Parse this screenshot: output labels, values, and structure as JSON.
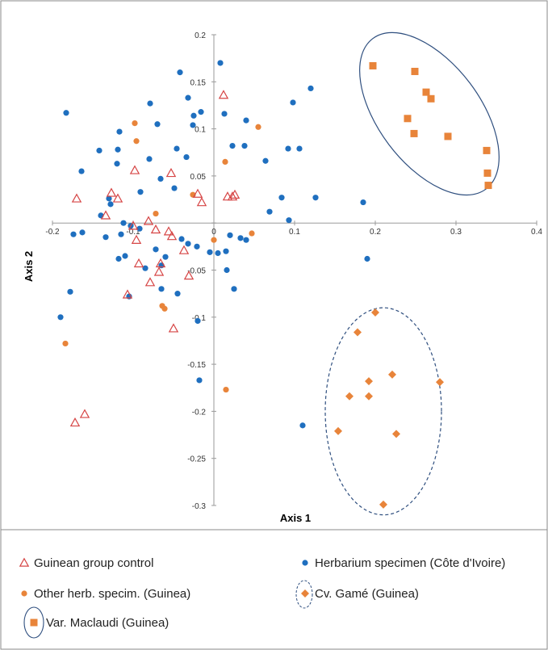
{
  "chart_data": {
    "type": "scatter",
    "xlabel": "Axis 1",
    "ylabel": "Axis 2",
    "xlim": [
      -0.2,
      0.4
    ],
    "ylim": [
      -0.3,
      0.2
    ],
    "x_ticks": [
      -0.2,
      -0.1,
      0,
      0.1,
      0.2,
      0.3,
      0.4
    ],
    "y_ticks": [
      0.2,
      0.15,
      0.1,
      0.05,
      0,
      -0.05,
      -0.1,
      -0.15,
      -0.2,
      -0.25,
      -0.3
    ],
    "x_tick_labels": [
      "-0.2",
      "-0.1",
      "0",
      "0.1",
      "0.2",
      "0.3",
      "0.4"
    ],
    "y_tick_labels": [
      "0.2",
      "0.15",
      "0.1",
      "0.05",
      "0",
      "-0.05",
      "-0.1",
      "-0.15",
      "-0.2",
      "-0.25",
      "-0.3"
    ],
    "grid": false,
    "legend_position": "bottom",
    "series": [
      {
        "name": "Guinean group control",
        "marker": "triangle-open",
        "color": "#d64545",
        "points": [
          [
            0.012,
            0.136
          ],
          [
            -0.098,
            0.056
          ],
          [
            -0.053,
            0.053
          ],
          [
            -0.17,
            0.026
          ],
          [
            -0.127,
            0.032
          ],
          [
            -0.134,
            0.008
          ],
          [
            -0.119,
            0.026
          ],
          [
            -0.02,
            0.031
          ],
          [
            -0.015,
            0.022
          ],
          [
            0.017,
            0.028
          ],
          [
            0.023,
            0.028
          ],
          [
            0.026,
            0.03
          ],
          [
            -0.1,
            -0.003
          ],
          [
            -0.081,
            0.002
          ],
          [
            -0.056,
            -0.009
          ],
          [
            -0.052,
            -0.014
          ],
          [
            -0.096,
            -0.018
          ],
          [
            -0.072,
            -0.007
          ],
          [
            -0.093,
            -0.043
          ],
          [
            -0.066,
            -0.043
          ],
          [
            -0.068,
            -0.052
          ],
          [
            -0.037,
            -0.029
          ],
          [
            -0.031,
            -0.056
          ],
          [
            -0.079,
            -0.063
          ],
          [
            -0.107,
            -0.076
          ],
          [
            -0.05,
            -0.112
          ],
          [
            -0.172,
            -0.212
          ],
          [
            -0.16,
            -0.203
          ]
        ]
      },
      {
        "name": "Other herb. specim. (Guinea)",
        "marker": "circle",
        "color": "#e8843a",
        "points": [
          [
            -0.098,
            0.106
          ],
          [
            -0.096,
            0.087
          ],
          [
            0.055,
            0.102
          ],
          [
            0.014,
            0.065
          ],
          [
            -0.026,
            0.03
          ],
          [
            -0.072,
            0.01
          ],
          [
            0.047,
            -0.011
          ],
          [
            0.0,
            -0.018
          ],
          [
            -0.064,
            -0.088
          ],
          [
            -0.061,
            -0.091
          ],
          [
            -0.184,
            -0.128
          ],
          [
            0.015,
            -0.177
          ]
        ]
      },
      {
        "name": "Herbarium specimen (Côte d'Ivoire)",
        "marker": "circle",
        "color": "#1f6fbf",
        "points": [
          [
            -0.183,
            0.117
          ],
          [
            0.008,
            0.17
          ],
          [
            -0.042,
            0.16
          ],
          [
            0.12,
            0.143
          ],
          [
            -0.032,
            0.133
          ],
          [
            -0.025,
            0.114
          ],
          [
            -0.016,
            0.118
          ],
          [
            -0.079,
            0.127
          ],
          [
            -0.117,
            0.097
          ],
          [
            -0.119,
            0.078
          ],
          [
            -0.142,
            0.077
          ],
          [
            -0.12,
            0.063
          ],
          [
            -0.07,
            0.105
          ],
          [
            -0.026,
            0.104
          ],
          [
            0.013,
            0.116
          ],
          [
            0.04,
            0.109
          ],
          [
            0.098,
            0.128
          ],
          [
            0.023,
            0.082
          ],
          [
            0.038,
            0.082
          ],
          [
            -0.046,
            0.079
          ],
          [
            -0.034,
            0.07
          ],
          [
            -0.08,
            0.068
          ],
          [
            -0.164,
            0.055
          ],
          [
            -0.066,
            0.047
          ],
          [
            -0.091,
            0.033
          ],
          [
            -0.13,
            0.026
          ],
          [
            -0.14,
            0.008
          ],
          [
            -0.128,
            0.02
          ],
          [
            -0.112,
            0.0
          ],
          [
            -0.103,
            -0.003
          ],
          [
            -0.049,
            0.037
          ],
          [
            0.092,
            0.079
          ],
          [
            0.106,
            0.079
          ],
          [
            0.064,
            0.066
          ],
          [
            0.084,
            0.027
          ],
          [
            0.126,
            0.027
          ],
          [
            0.185,
            0.022
          ],
          [
            0.069,
            0.012
          ],
          [
            0.093,
            0.003
          ],
          [
            -0.174,
            -0.012
          ],
          [
            -0.134,
            -0.015
          ],
          [
            -0.163,
            -0.01
          ],
          [
            -0.115,
            -0.012
          ],
          [
            -0.092,
            -0.006
          ],
          [
            -0.04,
            -0.017
          ],
          [
            -0.032,
            -0.022
          ],
          [
            -0.021,
            -0.025
          ],
          [
            0.02,
            -0.013
          ],
          [
            0.033,
            -0.016
          ],
          [
            0.04,
            -0.018
          ],
          [
            -0.118,
            -0.038
          ],
          [
            -0.11,
            -0.035
          ],
          [
            -0.072,
            -0.028
          ],
          [
            -0.06,
            -0.036
          ],
          [
            -0.005,
            -0.031
          ],
          [
            0.005,
            -0.032
          ],
          [
            0.015,
            -0.03
          ],
          [
            -0.065,
            -0.045
          ],
          [
            -0.085,
            -0.048
          ],
          [
            0.016,
            -0.05
          ],
          [
            -0.045,
            -0.075
          ],
          [
            0.025,
            -0.07
          ],
          [
            -0.065,
            -0.07
          ],
          [
            -0.178,
            -0.073
          ],
          [
            -0.19,
            -0.1
          ],
          [
            -0.105,
            -0.078
          ],
          [
            0.19,
            -0.038
          ],
          [
            -0.02,
            -0.104
          ],
          [
            -0.018,
            -0.167
          ],
          [
            0.11,
            -0.215
          ]
        ]
      },
      {
        "name": "Cv. Gamé (Guinea)",
        "marker": "diamond",
        "color": "#e8843a",
        "points": [
          [
            0.2,
            -0.095
          ],
          [
            0.178,
            -0.116
          ],
          [
            0.192,
            -0.168
          ],
          [
            0.221,
            -0.161
          ],
          [
            0.28,
            -0.169
          ],
          [
            0.168,
            -0.184
          ],
          [
            0.192,
            -0.184
          ],
          [
            0.226,
            -0.224
          ],
          [
            0.154,
            -0.221
          ],
          [
            0.21,
            -0.299
          ]
        ]
      },
      {
        "name": "Var. Maclaudi (Guinea)",
        "marker": "square",
        "color": "#e8843a",
        "points": [
          [
            0.197,
            0.167
          ],
          [
            0.249,
            0.161
          ],
          [
            0.263,
            0.139
          ],
          [
            0.269,
            0.132
          ],
          [
            0.24,
            0.111
          ],
          [
            0.248,
            0.095
          ],
          [
            0.29,
            0.092
          ],
          [
            0.338,
            0.077
          ],
          [
            0.339,
            0.053
          ],
          [
            0.34,
            0.04
          ]
        ]
      }
    ],
    "group_outlines": [
      {
        "group": "Var. Maclaudi (Guinea)",
        "style": "solid",
        "color": "#2f4f7f",
        "cx": 0.267,
        "cy": 0.116,
        "rx": 0.063,
        "ry": 0.1,
        "rotate_deg": -37
      },
      {
        "group": "Cv. Gamé (Guinea)",
        "style": "dashed",
        "color": "#2f4f7f",
        "cx": 0.21,
        "cy": -0.2,
        "rx": 0.072,
        "ry": 0.11,
        "rotate_deg": 0
      }
    ]
  }
}
